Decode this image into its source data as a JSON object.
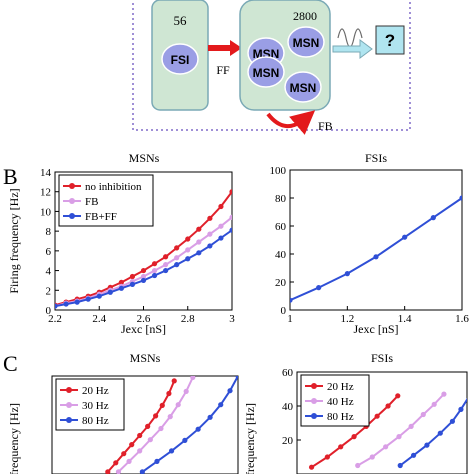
{
  "schematic": {
    "fsi_count": "56",
    "fsi_label": "FSI",
    "msn_count": "2800",
    "msn_label": "MSN",
    "ff_label": "FF",
    "fb_label": "FB",
    "output_label": "?"
  },
  "panel_labels": {
    "B": "B",
    "C": "C"
  },
  "colors": {
    "pop_fill": "#cfe6d3",
    "pop_stroke": "#7aa9b5",
    "cell_fill": "#9a9ee5",
    "dotted_frame": "#9f8fd6",
    "arrow_red": "#e31a1c",
    "output_box": "#b0e5f0",
    "red": "#e0202a",
    "pink": "#d99ee6",
    "blue": "#2f4fd6"
  },
  "chart_data": [
    {
      "type": "line",
      "title": "MSNs",
      "xlabel": "Jexc [nS]",
      "ylabel": "Firing frequency [Hz]",
      "xlim": [
        2.2,
        3.0
      ],
      "ylim": [
        0,
        14
      ],
      "xticks": [
        "2.2",
        "2.4",
        "2.6",
        "2.8",
        "3"
      ],
      "yticks": [
        "0",
        "2",
        "4",
        "6",
        "8",
        "10",
        "12",
        "14"
      ],
      "legend": "top-left",
      "series": [
        {
          "name": "no inhibition",
          "color": "red",
          "x": [
            2.2,
            2.25,
            2.3,
            2.35,
            2.4,
            2.45,
            2.5,
            2.55,
            2.6,
            2.65,
            2.7,
            2.75,
            2.8,
            2.85,
            2.9,
            2.95,
            3.0
          ],
          "y": [
            0.5,
            0.8,
            1.1,
            1.4,
            1.8,
            2.3,
            2.8,
            3.4,
            4.0,
            4.7,
            5.4,
            6.3,
            7.2,
            8.2,
            9.3,
            10.5,
            12.0
          ]
        },
        {
          "name": "FB",
          "color": "pink",
          "x": [
            2.2,
            2.25,
            2.3,
            2.35,
            2.4,
            2.45,
            2.5,
            2.55,
            2.6,
            2.65,
            2.7,
            2.75,
            2.8,
            2.85,
            2.9,
            2.95,
            3.0
          ],
          "y": [
            0.4,
            0.7,
            0.9,
            1.2,
            1.6,
            2.0,
            2.4,
            2.9,
            3.4,
            4.0,
            4.6,
            5.3,
            6.1,
            6.9,
            7.7,
            8.5,
            9.4
          ]
        },
        {
          "name": "FB+FF",
          "color": "blue",
          "x": [
            2.2,
            2.25,
            2.3,
            2.35,
            2.4,
            2.45,
            2.5,
            2.55,
            2.6,
            2.65,
            2.7,
            2.75,
            2.8,
            2.85,
            2.9,
            2.95,
            3.0
          ],
          "y": [
            0.4,
            0.6,
            0.8,
            1.1,
            1.4,
            1.8,
            2.2,
            2.6,
            3.0,
            3.5,
            4.0,
            4.6,
            5.2,
            5.8,
            6.5,
            7.3,
            8.1
          ]
        }
      ]
    },
    {
      "type": "line",
      "title": "FSIs",
      "xlabel": "Jexc [nS]",
      "ylabel": "",
      "xlim": [
        1.0,
        1.6
      ],
      "ylim": [
        0,
        100
      ],
      "xticks": [
        "1",
        "1.2",
        "1.4",
        "1.6"
      ],
      "yticks": [
        "0",
        "20",
        "40",
        "60",
        "80",
        "100"
      ],
      "series": [
        {
          "name": "",
          "color": "blue",
          "x": [
            1.0,
            1.1,
            1.2,
            1.3,
            1.4,
            1.5,
            1.6
          ],
          "y": [
            7,
            16,
            26,
            38,
            52,
            66,
            80
          ]
        }
      ]
    },
    {
      "type": "line",
      "title": "MSNs",
      "xlabel": "",
      "ylabel": "g frequency [Hz]",
      "xlim": [
        0,
        14
      ],
      "ylim": [
        0,
        14
      ],
      "yticks": [],
      "legend": "top-left",
      "series": [
        {
          "name": "20 Hz",
          "color": "red",
          "x": [
            4.2,
            4.8,
            5.4,
            6.0,
            6.6,
            7.2,
            7.8,
            8.3,
            8.8,
            9.2
          ],
          "y": [
            0.3,
            1.6,
            2.9,
            4.2,
            5.5,
            6.8,
            8.3,
            9.8,
            11.5,
            13.3
          ]
        },
        {
          "name": "30 Hz",
          "color": "pink",
          "x": [
            5.0,
            5.8,
            6.6,
            7.4,
            8.2,
            8.9,
            9.5,
            10.1,
            10.6
          ],
          "y": [
            0.3,
            1.8,
            3.3,
            4.9,
            6.5,
            8.2,
            9.9,
            11.8,
            13.8
          ]
        },
        {
          "name": "80 Hz",
          "color": "blue",
          "x": [
            6.8,
            7.9,
            9.0,
            10.0,
            11.0,
            11.9,
            12.7,
            13.4,
            14.0
          ],
          "y": [
            0.3,
            1.8,
            3.3,
            4.8,
            6.4,
            8.1,
            9.9,
            11.9,
            14.0
          ]
        }
      ]
    },
    {
      "type": "line",
      "title": "FSIs",
      "xlabel": "",
      "ylabel": "g frequency [Hz]",
      "xlim": [
        0,
        14
      ],
      "ylim": [
        0,
        60
      ],
      "yticks": [
        "20",
        "40",
        "60"
      ],
      "legend": "top-left",
      "series": [
        {
          "name": "20 Hz",
          "color": "red",
          "x": [
            1.2,
            2.5,
            3.6,
            4.7,
            5.7,
            6.6,
            7.5,
            8.3
          ],
          "y": [
            4,
            10,
            16,
            22,
            28,
            34,
            40,
            46
          ]
        },
        {
          "name": "40 Hz",
          "color": "pink",
          "x": [
            5.0,
            6.2,
            7.3,
            8.4,
            9.4,
            10.4,
            11.3,
            12.1
          ],
          "y": [
            5,
            10,
            16,
            22,
            28,
            35,
            41,
            47
          ]
        },
        {
          "name": "80 Hz",
          "color": "blue",
          "x": [
            8.5,
            9.6,
            10.7,
            11.8,
            12.8,
            13.5,
            14.3
          ],
          "y": [
            5,
            11,
            17,
            24,
            31,
            38,
            47
          ]
        }
      ]
    }
  ]
}
